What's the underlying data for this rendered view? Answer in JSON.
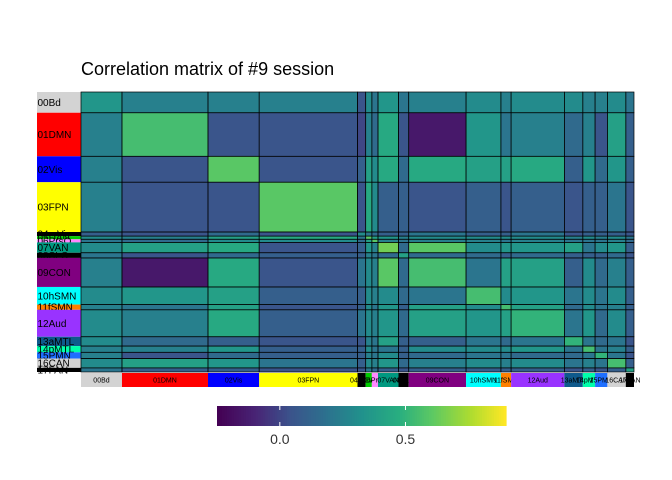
{
  "chart_data": {
    "type": "heatmap",
    "title": "Correlation matrix of #9 session",
    "xlabel": "",
    "ylabel": "",
    "networks": [
      {
        "name": "00Bd",
        "color": "#d3d3d3",
        "size": 20
      },
      {
        "name": "01DMN",
        "color": "#ff0000",
        "size": 42
      },
      {
        "name": "02Vis",
        "color": "#0000ff",
        "size": 25
      },
      {
        "name": "03FPN",
        "color": "#ffff00",
        "size": 48
      },
      {
        "name": "04mVis",
        "color": "#000000",
        "size": 4
      },
      {
        "name": "05DAN",
        "color": "#00cc00",
        "size": 3
      },
      {
        "name": "06PrsO",
        "color": "#ff88ff",
        "size": 3
      },
      {
        "name": "07VAN",
        "color": "#009980",
        "size": 10
      },
      {
        "name": "08SLC",
        "color": "#000000",
        "size": 5
      },
      {
        "name": "09CON",
        "color": "#800080",
        "size": 28
      },
      {
        "name": "10hSMN",
        "color": "#00ffff",
        "size": 17
      },
      {
        "name": "11fSMN",
        "color": "#ff8000",
        "size": 5
      },
      {
        "name": "12Aud",
        "color": "#9933ff",
        "size": 26
      },
      {
        "name": "13aMTL",
        "color": "#0f5a8c",
        "size": 9
      },
      {
        "name": "14pMTL",
        "color": "#00ffaa",
        "size": 6
      },
      {
        "name": "15PMN",
        "color": "#1f6fff",
        "size": 6
      },
      {
        "name": "16CAN",
        "color": "#d3d3d3",
        "size": 9
      },
      {
        "name": "17FAN",
        "color": "#000000",
        "size": 4
      }
    ],
    "matrix_rows": [
      "00Bd",
      "01DMN",
      "02Vis",
      "03FPN",
      "04mVis",
      "05DAN",
      "06PrsO",
      "07VAN",
      "08SLC",
      "09CON",
      "10hSMN",
      "11fSMN",
      "12Aud",
      "13aMTL",
      "14pMTL",
      "15PMN",
      "16CAN",
      "17FAN"
    ],
    "values": [
      [
        0.35,
        0.25,
        0.25,
        0.25,
        0.05,
        0.3,
        0.2,
        0.35,
        0.2,
        0.25,
        0.3,
        0.25,
        0.3,
        0.3,
        0.25,
        0.25,
        0.3,
        0.2
      ],
      [
        0.25,
        0.55,
        0.05,
        0.05,
        0.0,
        0.25,
        0.15,
        0.45,
        0.05,
        -0.15,
        0.35,
        0.2,
        0.25,
        0.15,
        0.25,
        0.05,
        0.4,
        0.1
      ],
      [
        0.25,
        0.05,
        0.6,
        0.05,
        0.1,
        0.4,
        0.3,
        0.45,
        0.15,
        0.45,
        0.4,
        0.4,
        0.45,
        0.1,
        0.35,
        0.15,
        0.35,
        0.1
      ],
      [
        0.25,
        0.05,
        0.05,
        0.6,
        0.05,
        0.45,
        0.3,
        0.1,
        0.1,
        0.05,
        0.1,
        0.05,
        0.1,
        0.05,
        0.1,
        0.1,
        0.2,
        0.05
      ],
      [
        0.1,
        0.05,
        0.15,
        0.05,
        0.3,
        0.2,
        0.15,
        0.1,
        0.1,
        0.2,
        0.1,
        0.1,
        0.2,
        0.05,
        0.1,
        0.1,
        0.1,
        0.05
      ],
      [
        0.3,
        0.25,
        0.4,
        0.45,
        0.2,
        0.6,
        0.4,
        0.35,
        0.25,
        0.3,
        0.3,
        0.3,
        0.3,
        0.25,
        0.3,
        0.25,
        0.3,
        0.2
      ],
      [
        0.2,
        0.15,
        0.3,
        0.3,
        0.15,
        0.4,
        0.6,
        0.25,
        0.2,
        0.25,
        0.25,
        0.2,
        0.25,
        0.2,
        0.2,
        0.2,
        0.25,
        0.15
      ],
      [
        0.3,
        0.4,
        0.45,
        0.05,
        0.1,
        0.35,
        0.25,
        0.65,
        0.15,
        0.6,
        0.3,
        0.35,
        0.35,
        0.4,
        0.2,
        0.3,
        0.35,
        0.1
      ],
      [
        0.2,
        0.05,
        0.15,
        0.1,
        0.1,
        0.25,
        0.2,
        0.15,
        0.4,
        0.15,
        0.15,
        0.1,
        0.15,
        0.1,
        0.1,
        0.1,
        0.15,
        0.05
      ],
      [
        0.25,
        -0.15,
        0.45,
        0.05,
        0.2,
        0.3,
        0.25,
        0.6,
        0.15,
        0.55,
        0.2,
        0.4,
        0.4,
        0.1,
        0.3,
        0.15,
        0.25,
        0.1
      ],
      [
        0.3,
        0.35,
        0.4,
        0.1,
        0.1,
        0.3,
        0.25,
        0.3,
        0.15,
        0.2,
        0.55,
        0.3,
        0.35,
        0.2,
        0.3,
        0.2,
        0.3,
        0.1
      ],
      [
        0.25,
        0.2,
        0.4,
        0.05,
        0.1,
        0.3,
        0.2,
        0.35,
        0.1,
        0.4,
        0.3,
        0.55,
        0.4,
        0.15,
        0.3,
        0.2,
        0.25,
        0.1
      ],
      [
        0.3,
        0.25,
        0.45,
        0.1,
        0.2,
        0.3,
        0.25,
        0.35,
        0.15,
        0.4,
        0.35,
        0.4,
        0.5,
        0.2,
        0.35,
        0.15,
        0.3,
        0.1
      ],
      [
        0.3,
        0.15,
        0.1,
        0.05,
        0.05,
        0.25,
        0.2,
        0.4,
        0.1,
        0.1,
        0.2,
        0.15,
        0.2,
        0.5,
        0.2,
        0.15,
        0.2,
        0.05
      ],
      [
        0.25,
        0.25,
        0.35,
        0.1,
        0.1,
        0.3,
        0.2,
        0.2,
        0.1,
        0.3,
        0.3,
        0.3,
        0.35,
        0.2,
        0.55,
        0.2,
        0.25,
        0.1
      ],
      [
        0.25,
        0.05,
        0.15,
        0.1,
        0.1,
        0.25,
        0.2,
        0.3,
        0.1,
        0.15,
        0.2,
        0.2,
        0.15,
        0.15,
        0.2,
        0.5,
        0.2,
        0.05
      ],
      [
        0.3,
        0.4,
        0.35,
        0.2,
        0.1,
        0.3,
        0.25,
        0.35,
        0.15,
        0.25,
        0.3,
        0.25,
        0.3,
        0.2,
        0.25,
        0.2,
        0.55,
        0.1
      ],
      [
        0.2,
        0.1,
        0.1,
        0.05,
        0.05,
        0.2,
        0.15,
        0.1,
        0.05,
        0.1,
        0.1,
        0.1,
        0.1,
        0.05,
        0.1,
        0.05,
        0.1,
        0.4
      ]
    ],
    "colorbar": {
      "palette": "viridis",
      "min": -0.25,
      "max": 0.9,
      "ticks": [
        0.0,
        0.5
      ],
      "tick_labels": [
        "0.0",
        "0.5"
      ]
    },
    "grid": false,
    "legend_position": "bottom"
  }
}
